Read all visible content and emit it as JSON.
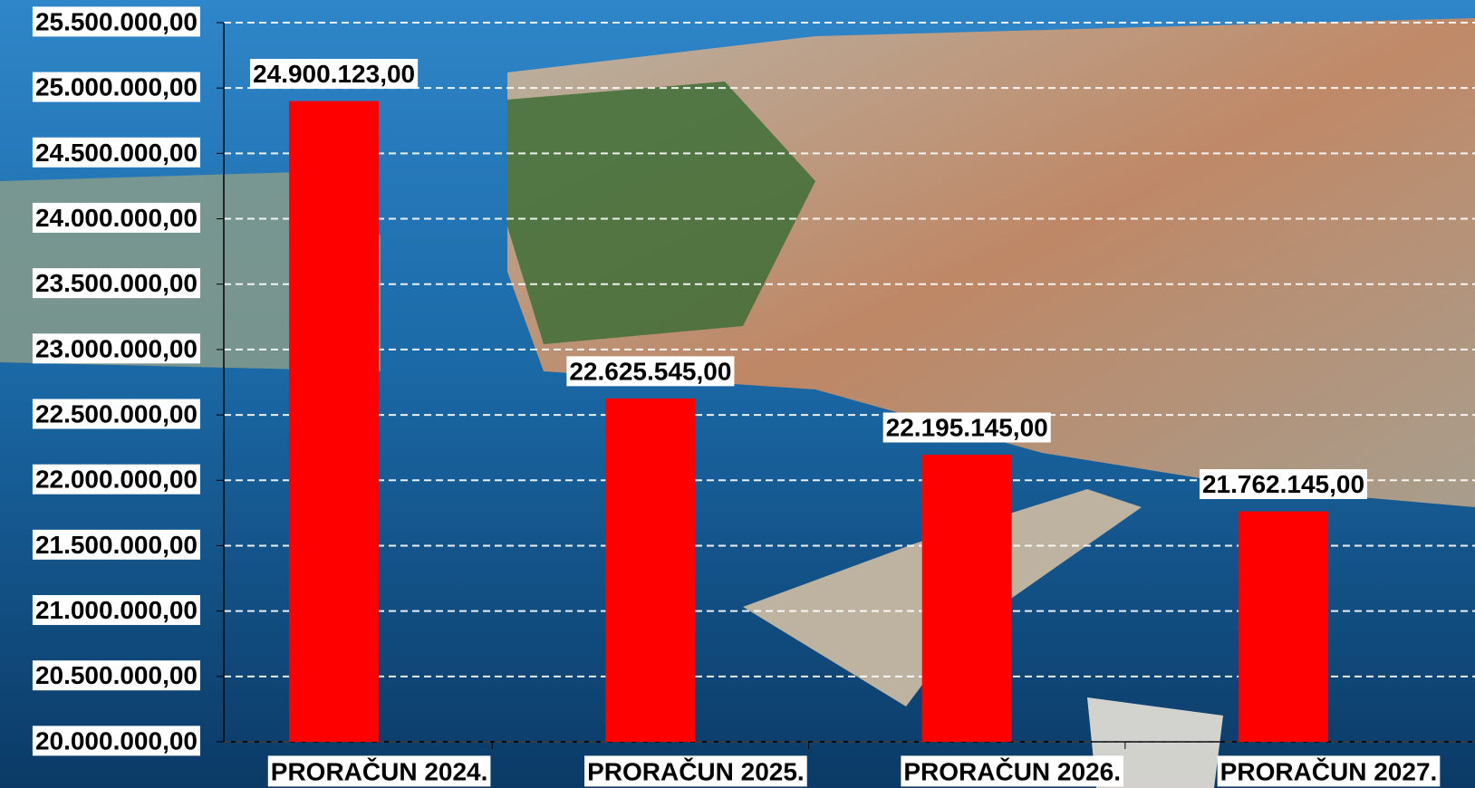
{
  "chart_data": {
    "type": "bar",
    "categories": [
      "PRORAČUN 2024.",
      "PRORAČUN 2025.",
      "PRORAČUN 2026.",
      "PRORAČUN 2027."
    ],
    "values": [
      24900123,
      22625545,
      22195145,
      21762145
    ],
    "value_labels": [
      "24.900.123,00",
      "22.625.545,00",
      "22.195.145,00",
      "21.762.145,00"
    ],
    "color": "#ff0000",
    "ylim": [
      20000000,
      25500000
    ],
    "yticks": [
      {
        "value": 20000000,
        "label": "20.000.000,00"
      },
      {
        "value": 20500000,
        "label": "20.500.000,00"
      },
      {
        "value": 21000000,
        "label": "21.000.000,00"
      },
      {
        "value": 21500000,
        "label": "21.500.000,00"
      },
      {
        "value": 22000000,
        "label": "22.000.000,00"
      },
      {
        "value": 22500000,
        "label": "22.500.000,00"
      },
      {
        "value": 23000000,
        "label": "23.000.000,00"
      },
      {
        "value": 23500000,
        "label": "23.500.000,00"
      },
      {
        "value": 24000000,
        "label": "24.000.000,00"
      },
      {
        "value": 24500000,
        "label": "24.500.000,00"
      },
      {
        "value": 25000000,
        "label": "25.000.000,00"
      },
      {
        "value": 25500000,
        "label": "25.500.000,00"
      }
    ],
    "grid": true
  }
}
